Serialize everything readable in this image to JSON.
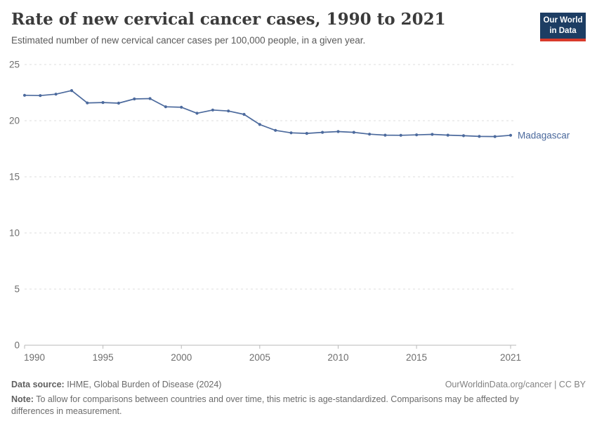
{
  "header": {
    "title": "Rate of new cervical cancer cases, 1990 to 2021",
    "subtitle": "Estimated number of new cervical cancer cases per 100,000 people, in a given year."
  },
  "logo": {
    "line1": "Our World",
    "line2": "in Data",
    "bg_color": "#1d3d63",
    "bar_color": "#d93a2b"
  },
  "chart_data": {
    "type": "line",
    "title": "Rate of new cervical cancer cases, 1990 to 2021",
    "xlabel": "",
    "ylabel": "",
    "x": [
      1990,
      1991,
      1992,
      1993,
      1994,
      1995,
      1996,
      1997,
      1998,
      1999,
      2000,
      2001,
      2002,
      2003,
      2004,
      2005,
      2006,
      2007,
      2008,
      2009,
      2010,
      2011,
      2012,
      2013,
      2014,
      2015,
      2016,
      2017,
      2018,
      2019,
      2020,
      2021
    ],
    "series": [
      {
        "name": "Madagascar",
        "color": "#4C6A9D",
        "values": [
          22.26,
          22.24,
          22.36,
          22.68,
          21.58,
          21.62,
          21.56,
          21.94,
          21.97,
          21.24,
          21.2,
          20.66,
          20.95,
          20.86,
          20.56,
          19.66,
          19.14,
          18.92,
          18.87,
          18.96,
          19.03,
          18.96,
          18.8,
          18.71,
          18.7,
          18.74,
          18.78,
          18.71,
          18.66,
          18.6,
          18.59,
          18.7
        ]
      }
    ],
    "end_label": "Madagascar",
    "xticks": [
      1990,
      1995,
      2000,
      2005,
      2010,
      2015,
      2021
    ],
    "yticks": [
      0,
      5,
      10,
      15,
      20,
      25
    ],
    "ylim": [
      0,
      25
    ],
    "xlim": [
      1990,
      2021
    ],
    "grid": "horizontal-dashed",
    "legend_position": "line-end",
    "gridline_color": "#dcdcdc",
    "axis_color": "#b9b9b9",
    "tick_label_color": "#6e6e6e"
  },
  "footer": {
    "source_label": "Data source:",
    "source_value": "IHME, Global Burden of Disease (2024)",
    "rights": "OurWorldinData.org/cancer | CC BY",
    "note_label": "Note:",
    "note_value": "To allow for comparisons between countries and over time, this metric is age-standardized. Comparisons may be affected by differences in measurement."
  }
}
